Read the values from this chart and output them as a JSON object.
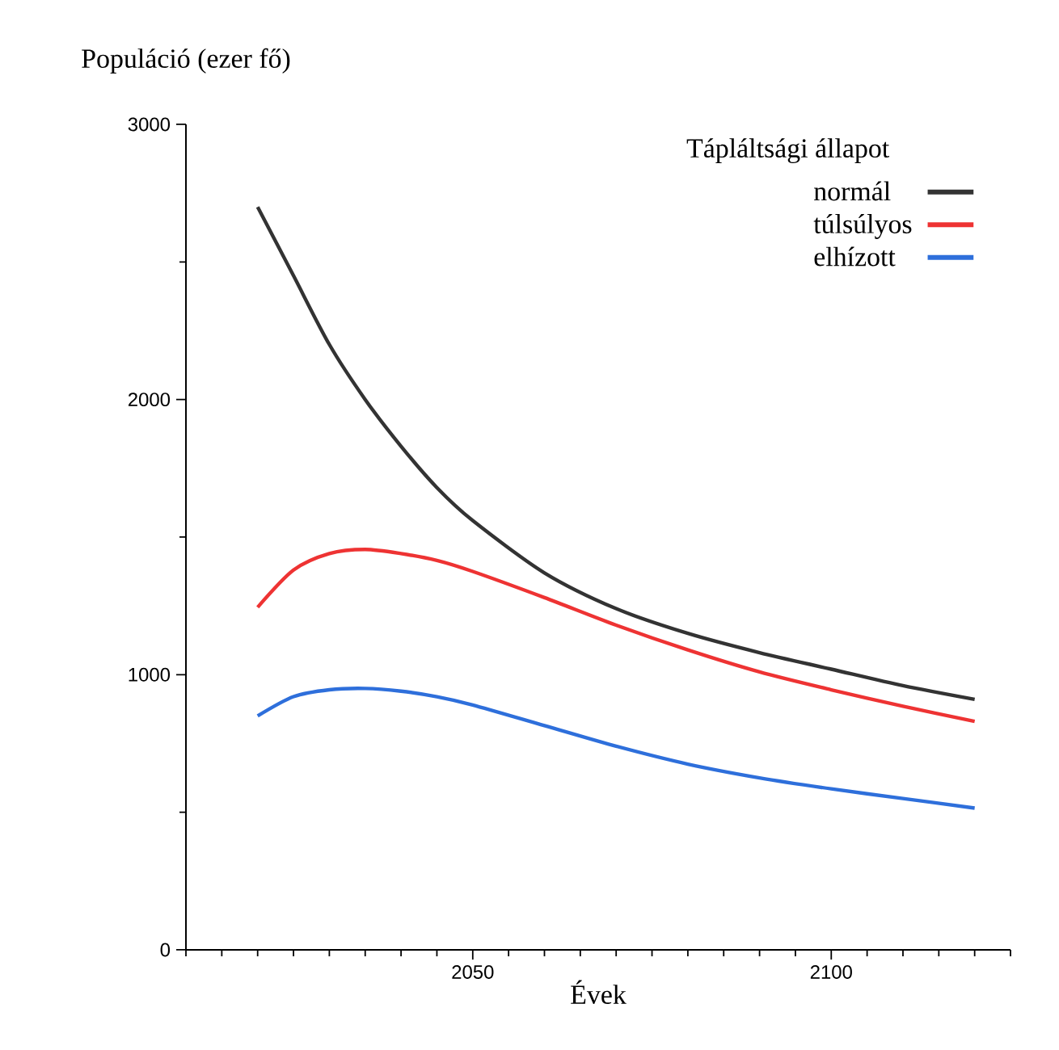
{
  "chart_data": {
    "type": "line",
    "xlabel": "Évek",
    "ylabel": "Populáció (ezer fő)",
    "legend_title": "Tápláltsági állapot",
    "legend": "top right",
    "grid": false,
    "line_style": "solid",
    "marker": "none",
    "x": [
      2020,
      2025,
      2030,
      2035,
      2040,
      2045,
      2050,
      2060,
      2070,
      2080,
      2090,
      2100,
      2110,
      2120
    ],
    "xlim": [
      2010,
      2125
    ],
    "xticks": [
      {
        "value": 2010,
        "label": null
      },
      {
        "value": 2015,
        "label": null
      },
      {
        "value": 2020,
        "label": null
      },
      {
        "value": 2025,
        "label": null
      },
      {
        "value": 2030,
        "label": null
      },
      {
        "value": 2035,
        "label": null
      },
      {
        "value": 2040,
        "label": null
      },
      {
        "value": 2045,
        "label": null
      },
      2050,
      {
        "value": 2055,
        "label": null
      },
      {
        "value": 2060,
        "label": null
      },
      {
        "value": 2065,
        "label": null
      },
      {
        "value": 2070,
        "label": null
      },
      {
        "value": 2075,
        "label": null
      },
      {
        "value": 2080,
        "label": null
      },
      {
        "value": 2085,
        "label": null
      },
      {
        "value": 2090,
        "label": null
      },
      {
        "value": 2095,
        "label": null
      },
      2100,
      {
        "value": 2105,
        "label": null
      },
      {
        "value": 2110,
        "label": null
      },
      {
        "value": 2115,
        "label": null
      },
      {
        "value": 2120,
        "label": null
      },
      {
        "value": 2125,
        "label": null
      }
    ],
    "ylim": [
      0,
      3000
    ],
    "yticks": [
      0,
      {
        "value": 500,
        "label": null
      },
      1000,
      {
        "value": 1500,
        "label": null
      },
      2000,
      {
        "value": 2500,
        "label": null
      },
      3000
    ],
    "series": [
      {
        "name": "normál",
        "color": "#333333",
        "values": [
          2700,
          2450,
          2200,
          2000,
          1830,
          1680,
          1560,
          1370,
          1240,
          1150,
          1080,
          1020,
          960,
          910
        ]
      },
      {
        "name": "túlsúlyos",
        "color": "#ee3333",
        "values": [
          1245,
          1380,
          1440,
          1455,
          1440,
          1415,
          1375,
          1280,
          1180,
          1090,
          1010,
          945,
          885,
          830
        ]
      },
      {
        "name": "elhízott",
        "color": "#2e6fdb",
        "values": [
          850,
          920,
          945,
          950,
          940,
          920,
          890,
          815,
          740,
          675,
          625,
          585,
          550,
          515
        ]
      }
    ]
  }
}
